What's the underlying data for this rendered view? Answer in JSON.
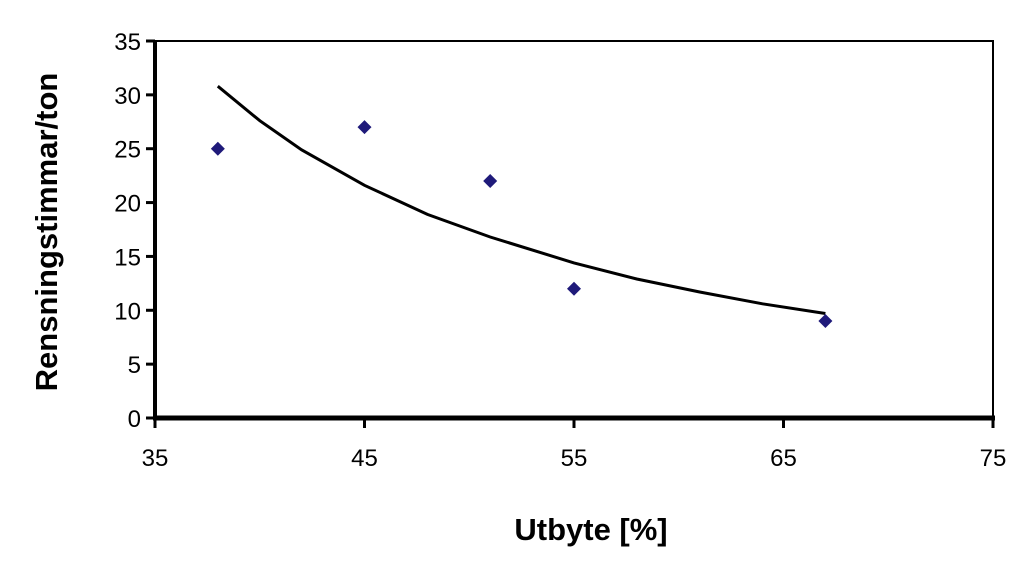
{
  "chart_data": {
    "type": "scatter",
    "title": "",
    "xlabel": "Utbyte [%]",
    "ylabel": "Rensningstimmar/ton",
    "xlim": [
      35,
      75
    ],
    "ylim": [
      0,
      35
    ],
    "x_ticks": [
      "35",
      "45",
      "55",
      "65",
      "75"
    ],
    "y_ticks": [
      "0",
      "5",
      "10",
      "15",
      "20",
      "25",
      "30",
      "35"
    ],
    "grid": false,
    "legend": "none",
    "marker": "diamond",
    "marker_color": "#1f1a7a",
    "points": [
      {
        "x": 38,
        "y": 25
      },
      {
        "x": 45,
        "y": 27
      },
      {
        "x": 51,
        "y": 22
      },
      {
        "x": 55,
        "y": 12
      },
      {
        "x": 67,
        "y": 9
      }
    ],
    "trendline": {
      "type": "power",
      "x": [
        38,
        40,
        42,
        45,
        48,
        51,
        55,
        58,
        61,
        64,
        67
      ],
      "y": [
        30.8,
        27.6,
        24.9,
        21.6,
        18.9,
        16.8,
        14.4,
        12.9,
        11.7,
        10.6,
        9.7
      ]
    }
  }
}
